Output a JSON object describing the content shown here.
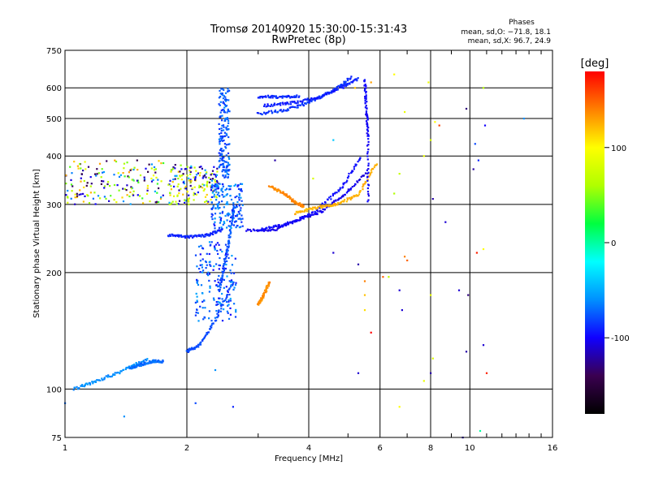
{
  "chart_data": {
    "type": "scatter",
    "title": "Tromsø 20140920 15:30:00-15:31:43",
    "subtitle": "RwPretec (8p)",
    "xlabel": "Frequency [MHz]",
    "ylabel": "Stationary phase Virtual Height [km]",
    "x_scale": "log",
    "y_scale": "log",
    "xlim": [
      1,
      16
    ],
    "ylim": [
      75,
      750
    ],
    "x_ticks": [
      {
        "value": 1,
        "label": "1"
      },
      {
        "value": 2,
        "label": "2"
      },
      {
        "value": 4,
        "label": "4"
      },
      {
        "value": 6,
        "label": "6"
      },
      {
        "value": 8,
        "label": "8"
      },
      {
        "value": 10,
        "label": "10"
      },
      {
        "value": 16,
        "label": "16"
      }
    ],
    "x_minor_ticks": [
      3,
      5,
      7,
      9,
      11,
      12,
      13,
      14,
      15
    ],
    "y_ticks": [
      {
        "value": 75,
        "label": "75"
      },
      {
        "value": 100,
        "label": "100"
      },
      {
        "value": 200,
        "label": "200"
      },
      {
        "value": 300,
        "label": "300"
      },
      {
        "value": 400,
        "label": "400"
      },
      {
        "value": 500,
        "label": "500"
      },
      {
        "value": 600,
        "label": "600"
      },
      {
        "value": 750,
        "label": "750"
      }
    ],
    "grid": true,
    "phases_box": {
      "title": "Phases",
      "line1": "mean, sd,O: −71.8, 18.1",
      "line2": "mean, sd,X:  96.7, 24.9"
    },
    "colorbar": {
      "label": "[deg]",
      "range": [
        -180,
        180
      ],
      "ticks": [
        {
          "value": 100,
          "label": "100"
        },
        {
          "value": 0,
          "label": "0"
        },
        {
          "value": -100,
          "label": "-100"
        }
      ],
      "colors": [
        "#000000",
        "#3a0050",
        "#1000ff",
        "#0090ff",
        "#00ffff",
        "#00ff40",
        "#b0ff00",
        "#ffff00",
        "#ff8000",
        "#ff0000"
      ]
    },
    "traces": [
      {
        "name": "",
        "type": "arc",
        "xf": [
          2.8,
          3.3,
          3.8,
          4.3,
          4.9,
          5.6
        ],
        "y": [
          257,
          258,
          275,
          288,
          318,
          365
        ],
        "phase": -105
      },
      {
        "name": "",
        "type": "arc",
        "xf": [
          3.0,
          3.5,
          4.1,
          4.8,
          5.4
        ],
        "y": [
          258,
          266,
          285,
          330,
          400
        ],
        "phase": -98
      },
      {
        "name": "",
        "type": "arc",
        "xf": [
          3.7,
          4.2,
          4.7,
          5.3,
          5.9
        ],
        "y": [
          285,
          295,
          300,
          318,
          385
        ],
        "phase": 125
      },
      {
        "name": "",
        "type": "arc",
        "xf": [
          3.2,
          3.5,
          3.7,
          3.9
        ],
        "y": [
          335,
          318,
          304,
          296
        ],
        "phase": 138
      },
      {
        "name": "",
        "type": "arc",
        "xf": [
          3.0,
          3.5,
          4.0,
          4.6,
          5.1
        ],
        "y": [
          515,
          525,
          550,
          590,
          640
        ],
        "phase": -85
      },
      {
        "name": "",
        "type": "arc",
        "xf": [
          3.1,
          3.6,
          4.2,
          4.8,
          5.3
        ],
        "y": [
          540,
          548,
          565,
          600,
          635
        ],
        "phase": -92
      },
      {
        "name": "",
        "type": "arc",
        "xf": [
          3.0,
          3.4,
          3.8
        ],
        "y": [
          570,
          568,
          572
        ],
        "phase": -88
      },
      {
        "name": "",
        "type": "arc",
        "xf": [
          2.0,
          2.15,
          2.35,
          2.6
        ],
        "y": [
          125,
          130,
          150,
          190
        ],
        "phase": -80
      },
      {
        "name": "",
        "type": "arc",
        "xf": [
          2.4,
          2.48,
          2.55,
          2.62
        ],
        "y": [
          180,
          210,
          250,
          300
        ],
        "phase": -78
      },
      {
        "name": "",
        "type": "arc",
        "xf": [
          1.8,
          2.0,
          2.25,
          2.45
        ],
        "y": [
          250,
          247,
          250,
          258
        ],
        "phase": -90
      },
      {
        "name": "",
        "type": "arc",
        "xf": [
          1.05,
          1.2,
          1.4,
          1.6
        ],
        "y": [
          100,
          105,
          112,
          120
        ],
        "phase": -60
      },
      {
        "name": "",
        "type": "arc",
        "xf": [
          1.45,
          1.55,
          1.65,
          1.75
        ],
        "y": [
          113,
          116,
          118,
          118
        ],
        "phase": -70
      },
      {
        "name": "",
        "type": "arc",
        "xf": [
          3.0,
          3.1,
          3.2
        ],
        "y": [
          165,
          175,
          190
        ],
        "phase": 135
      },
      {
        "name": "",
        "type": "arc",
        "xf": [
          5.5,
          5.55,
          5.6,
          5.6
        ],
        "y": [
          630,
          520,
          450,
          300
        ],
        "phase": -100
      }
    ],
    "clusters": [
      {
        "x": [
          1.0,
          1.75
        ],
        "y": [
          300,
          390
        ],
        "phases": [
          -140,
          -110,
          120,
          90,
          -60,
          40,
          60
        ]
      },
      {
        "x": [
          1.8,
          2.4
        ],
        "y": [
          300,
          380
        ],
        "phases": [
          -130,
          -100,
          110,
          80,
          -50,
          60
        ]
      },
      {
        "x": [
          2.1,
          2.65
        ],
        "y": [
          150,
          240
        ],
        "phases": [
          -90,
          -75,
          -60
        ]
      },
      {
        "x": [
          2.3,
          2.75
        ],
        "y": [
          260,
          340
        ],
        "phases": [
          -85,
          -70,
          -60
        ]
      },
      {
        "x": [
          2.4,
          2.55
        ],
        "y": [
          350,
          600
        ],
        "phases": [
          -80,
          -70
        ]
      }
    ],
    "scatter": [
      {
        "x": 6.5,
        "y": 650,
        "phase": 100
      },
      {
        "x": 7.9,
        "y": 620,
        "phase": 90
      },
      {
        "x": 8.0,
        "y": 440,
        "phase": 80
      },
      {
        "x": 7.7,
        "y": 400,
        "phase": 90
      },
      {
        "x": 9.8,
        "y": 530,
        "phase": -130
      },
      {
        "x": 10.9,
        "y": 480,
        "phase": -100
      },
      {
        "x": 8.4,
        "y": 480,
        "phase": 160
      },
      {
        "x": 10.3,
        "y": 430,
        "phase": -80
      },
      {
        "x": 10.5,
        "y": 390,
        "phase": -90
      },
      {
        "x": 10.2,
        "y": 370,
        "phase": -120
      },
      {
        "x": 10.8,
        "y": 600,
        "phase": 60
      },
      {
        "x": 13.6,
        "y": 500,
        "phase": -60
      },
      {
        "x": 6.9,
        "y": 520,
        "phase": 90
      },
      {
        "x": 6.7,
        "y": 360,
        "phase": 70
      },
      {
        "x": 6.5,
        "y": 320,
        "phase": 60
      },
      {
        "x": 8.1,
        "y": 310,
        "phase": -120
      },
      {
        "x": 8.7,
        "y": 270,
        "phase": -110
      },
      {
        "x": 10.4,
        "y": 225,
        "phase": 170
      },
      {
        "x": 10.8,
        "y": 230,
        "phase": 100
      },
      {
        "x": 6.9,
        "y": 220,
        "phase": 140
      },
      {
        "x": 7.0,
        "y": 215,
        "phase": 150
      },
      {
        "x": 6.1,
        "y": 195,
        "phase": 150
      },
      {
        "x": 6.3,
        "y": 195,
        "phase": 70
      },
      {
        "x": 6.7,
        "y": 180,
        "phase": -110
      },
      {
        "x": 5.3,
        "y": 210,
        "phase": -120
      },
      {
        "x": 4.6,
        "y": 225,
        "phase": -110
      },
      {
        "x": 5.5,
        "y": 190,
        "phase": 140
      },
      {
        "x": 5.5,
        "y": 175,
        "phase": 120
      },
      {
        "x": 5.5,
        "y": 160,
        "phase": 110
      },
      {
        "x": 5.7,
        "y": 140,
        "phase": 180
      },
      {
        "x": 6.8,
        "y": 160,
        "phase": -110
      },
      {
        "x": 9.4,
        "y": 180,
        "phase": -110
      },
      {
        "x": 9.9,
        "y": 175,
        "phase": -130
      },
      {
        "x": 8.0,
        "y": 175,
        "phase": 90
      },
      {
        "x": 8.0,
        "y": 110,
        "phase": -120
      },
      {
        "x": 8.1,
        "y": 120,
        "phase": 80
      },
      {
        "x": 10.8,
        "y": 130,
        "phase": -110
      },
      {
        "x": 11.0,
        "y": 110,
        "phase": 170
      },
      {
        "x": 9.8,
        "y": 125,
        "phase": -120
      },
      {
        "x": 5.3,
        "y": 110,
        "phase": -110
      },
      {
        "x": 6.7,
        "y": 90,
        "phase": 100
      },
      {
        "x": 7.7,
        "y": 105,
        "phase": 90
      },
      {
        "x": 10.6,
        "y": 78,
        "phase": 0
      },
      {
        "x": 9.6,
        "y": 75,
        "phase": -120
      },
      {
        "x": 2.1,
        "y": 92,
        "phase": -80
      },
      {
        "x": 2.35,
        "y": 112,
        "phase": -60
      },
      {
        "x": 2.6,
        "y": 90,
        "phase": -90
      },
      {
        "x": 1.4,
        "y": 85,
        "phase": -60
      },
      {
        "x": 1.0,
        "y": 92,
        "phase": -70
      },
      {
        "x": 4.6,
        "y": 440,
        "phase": -40
      },
      {
        "x": 4.1,
        "y": 350,
        "phase": 80
      },
      {
        "x": 3.3,
        "y": 390,
        "phase": -120
      },
      {
        "x": 5.2,
        "y": 600,
        "phase": 120
      },
      {
        "x": 5.7,
        "y": 620,
        "phase": 130
      },
      {
        "x": 8.2,
        "y": 490,
        "phase": 100
      }
    ]
  }
}
